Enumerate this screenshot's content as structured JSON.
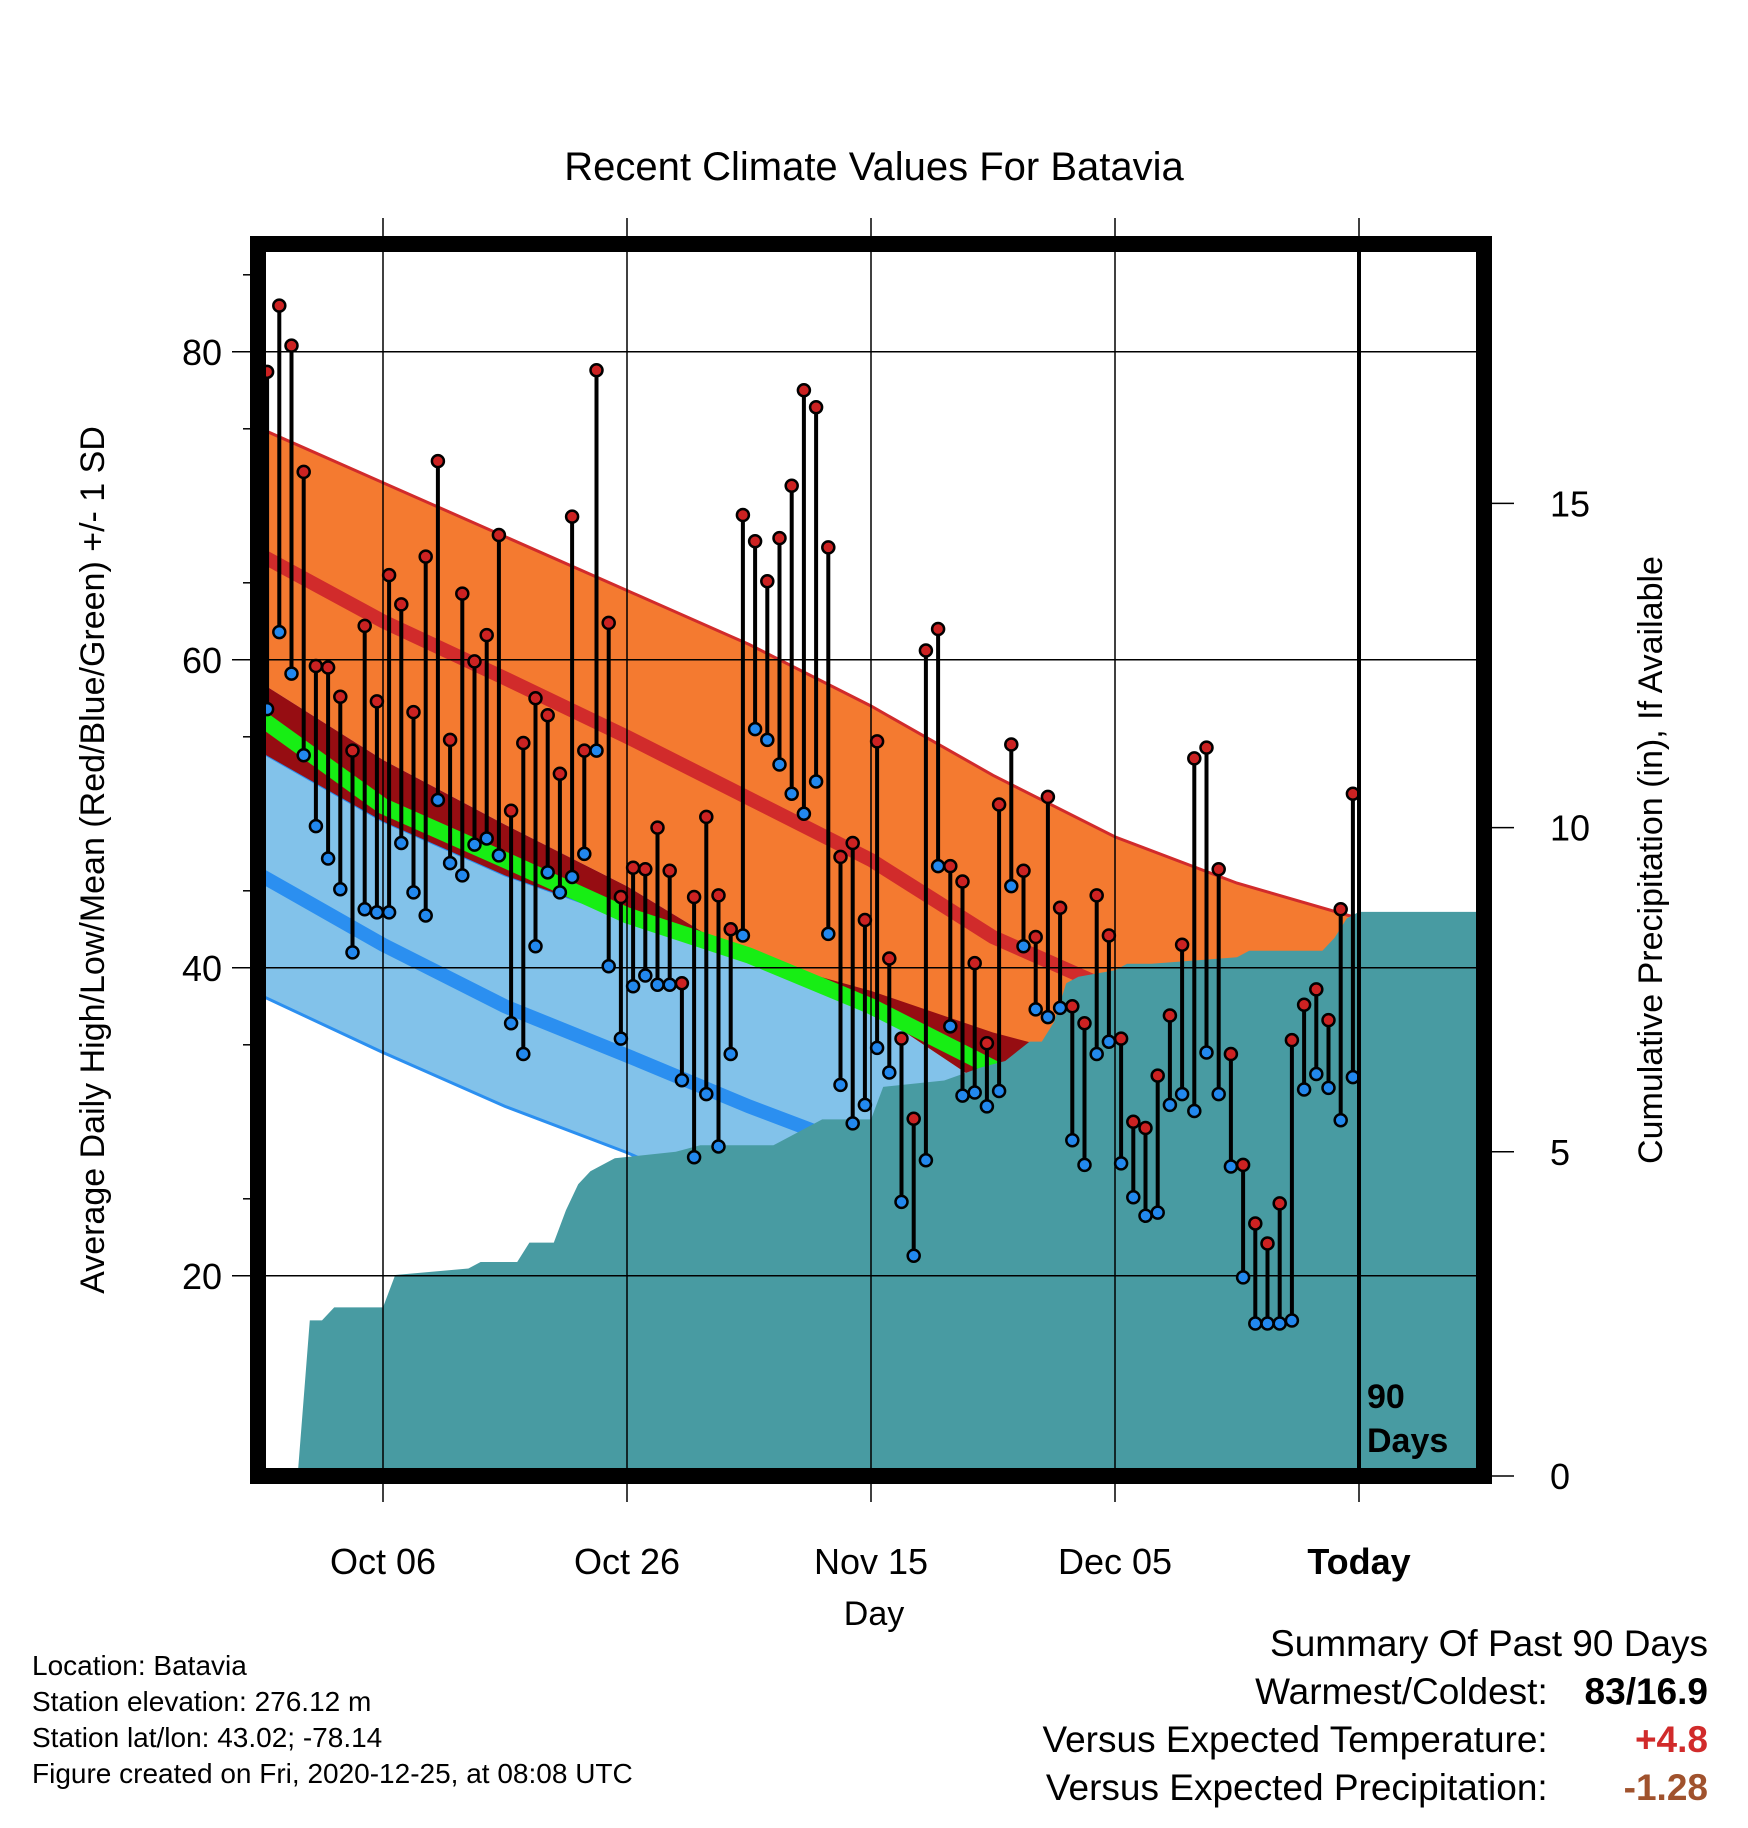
{
  "chart_data": {
    "type": "line",
    "title": "Recent Climate Values For Batavia",
    "xlabel": "Day",
    "ylabel": "Average Daily High/Low/Mean (Red/Blue/Green) +/- 1 SD",
    "y2label": "Cumulative Precipitation (in), If Available",
    "x_tick_labels": [
      "Oct 06",
      "Oct 26",
      "Nov 15",
      "Dec 05",
      "Today"
    ],
    "x_tick_days": [
      10,
      30,
      50,
      70,
      90
    ],
    "xlim": [
      0,
      100
    ],
    "ylim": [
      7,
      87
    ],
    "y_ticks": [
      20,
      40,
      60,
      80
    ],
    "y2lim": [
      0,
      19
    ],
    "y2_ticks": [
      0,
      5,
      10,
      15
    ],
    "today_day": 90,
    "today_label": [
      "90",
      "Days"
    ],
    "normals": {
      "day": [
        0,
        10,
        20,
        30,
        40,
        50,
        60,
        70,
        80,
        90,
        100
      ],
      "high_upper": [
        75,
        71.5,
        68,
        64.5,
        61,
        57,
        52.5,
        48.5,
        45.5,
        43.2,
        42.3
      ],
      "high_mean": [
        66.8,
        62.5,
        58.8,
        55,
        51,
        47,
        42,
        38.5,
        35,
        32,
        30.6
      ],
      "high_lower": [
        58.5,
        53.5,
        49.3,
        45.3,
        40.5,
        37.3,
        32,
        27,
        23.5,
        21,
        18.5
      ],
      "mean": [
        56.2,
        50.5,
        47,
        43.4,
        40.8,
        37.5,
        33.5,
        29.5,
        26,
        23.5,
        22
      ],
      "low_upper": [
        54,
        49.5,
        46,
        43.2,
        40.7,
        38.5,
        35.8,
        33.7,
        31,
        28.7,
        27.5
      ],
      "low_mean": [
        46,
        41.5,
        37.5,
        34.3,
        31,
        28,
        25,
        21.8,
        19,
        16,
        14
      ],
      "low_lower": [
        38.2,
        34.5,
        31,
        28,
        24.5,
        21.2,
        16.8,
        12.5,
        8,
        5,
        3
      ]
    },
    "series": [
      {
        "name": "High",
        "values": [
          78.7,
          83,
          80.4,
          72.2,
          59.6,
          59.5,
          57.6,
          54.1,
          62.2,
          57.3,
          65.5,
          63.6,
          56.6,
          66.7,
          72.9,
          54.8,
          64.3,
          59.9,
          61.6,
          68.1,
          50.2,
          54.6,
          57.5,
          56.4,
          52.6,
          69.3,
          54.1,
          78.8,
          62.4,
          44.6,
          46.5,
          46.4,
          49.1,
          46.3,
          39.0,
          44.6,
          49.8,
          44.7,
          42.5,
          69.4,
          67.7,
          65.1,
          67.9,
          71.3,
          77.5,
          76.4,
          67.3,
          47.2,
          48.1,
          43.1,
          54.7,
          40.6,
          35.4,
          30.2,
          60.6,
          62.0,
          46.6,
          45.6,
          40.3,
          35.1,
          50.6,
          54.5,
          46.3,
          42.0,
          51.1,
          43.9,
          37.5,
          36.4,
          44.7,
          42.1,
          35.4,
          30.0,
          29.6,
          33.0,
          36.9,
          41.5,
          53.6,
          54.3,
          46.4,
          34.4,
          27.2,
          23.4,
          22.1,
          24.7,
          35.3,
          37.6,
          38.6,
          36.6,
          43.8,
          51.3
        ]
      },
      {
        "name": "Low",
        "values": [
          56.8,
          61.8,
          59.1,
          53.8,
          49.2,
          47.1,
          45.1,
          41.0,
          43.8,
          43.6,
          43.6,
          48.1,
          44.9,
          43.4,
          50.9,
          46.8,
          46.0,
          48.0,
          48.4,
          47.3,
          36.4,
          34.4,
          41.4,
          46.2,
          44.9,
          45.9,
          47.4,
          54.1,
          40.1,
          35.4,
          38.8,
          39.5,
          38.9,
          38.9,
          32.7,
          27.7,
          31.8,
          28.4,
          34.4,
          42.1,
          55.5,
          54.8,
          53.2,
          51.3,
          50.0,
          52.1,
          42.2,
          32.4,
          29.9,
          31.1,
          34.8,
          33.2,
          24.8,
          21.3,
          27.5,
          46.6,
          36.2,
          31.7,
          31.9,
          31.0,
          32.0,
          45.3,
          41.4,
          37.3,
          36.8,
          37.4,
          28.8,
          27.2,
          34.4,
          35.2,
          27.3,
          25.1,
          23.9,
          24.1,
          31.1,
          31.8,
          30.7,
          34.5,
          31.8,
          27.1,
          19.9,
          16.9,
          16.9,
          16.9,
          17.1,
          32.1,
          33.1,
          32.2,
          30.1,
          32.9
        ]
      }
    ],
    "precip": {
      "day": [
        0,
        3,
        4,
        5,
        6,
        9,
        10,
        11,
        17,
        18,
        21,
        22,
        24,
        25,
        26,
        27,
        29,
        34,
        36,
        42,
        46,
        47,
        50,
        51,
        56,
        59,
        61,
        63,
        64,
        65,
        66,
        67,
        70,
        71,
        72,
        73,
        80,
        81,
        87,
        88,
        89,
        90,
        91,
        100
      ],
      "cum": [
        0,
        0,
        2.4,
        2.4,
        2.6,
        2.6,
        2.6,
        3.1,
        3.2,
        3.3,
        3.3,
        3.6,
        3.6,
        4.1,
        4.5,
        4.7,
        4.9,
        5.0,
        5.1,
        5.1,
        5.5,
        5.5,
        5.5,
        6.0,
        6.1,
        6.3,
        6.4,
        6.7,
        6.7,
        7.0,
        7.6,
        7.7,
        7.8,
        7.9,
        7.9,
        7.9,
        8.0,
        8.1,
        8.1,
        8.3,
        8.6,
        8.7,
        8.7,
        8.7
      ]
    }
  },
  "info": {
    "location": "Location: Batavia",
    "elevation": "Station elevation: 276.12 m",
    "latlon": "Station lat/lon: 43.02; -78.14",
    "created": "Figure created on Fri, 2020-12-25, at 08:08 UTC"
  },
  "summary": {
    "heading": "Summary Of Past 90 Days",
    "warmest_label": "Warmest/Coldest:",
    "warmest_value": "83/16.9",
    "temp_label": "Versus Expected Temperature:",
    "temp_value": "+4.8",
    "precip_label": "Versus Expected Precipitation:",
    "precip_value": "-1.28"
  },
  "colors": {
    "high_band": "#F47A30",
    "high_mean": "#D12B2B",
    "low_band": "#82C2EA",
    "low_mean": "#2B8FF0",
    "mean": "#17EE14",
    "overlap": "#960D12",
    "precip": "#489BA2",
    "high_dot": "#CC2222",
    "low_dot": "#2288EE",
    "temp_value": "#D12B2B",
    "precip_value": "#A0522D"
  }
}
